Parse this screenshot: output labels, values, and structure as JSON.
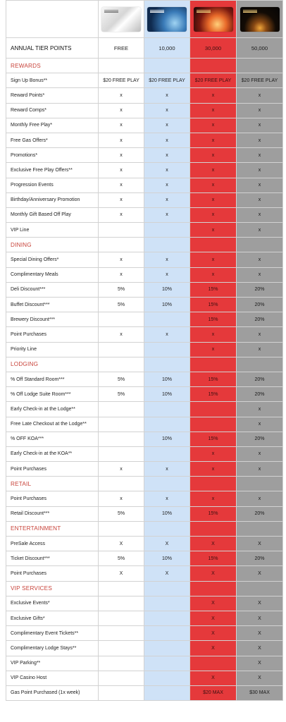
{
  "header": {
    "annual_label": "ANNUAL TIER POINTS",
    "tiers": [
      "FREE",
      "10,000",
      "30,000",
      "50,000"
    ],
    "cards": [
      {
        "name": "Free card",
        "wordmark": "STELLAR REWARDS"
      },
      {
        "name": "10,000 card",
        "wordmark": "STELLAR REWARDS"
      },
      {
        "name": "30,000 card",
        "wordmark": "STELLAR REWARDS"
      },
      {
        "name": "50,000 card",
        "wordmark": "STELLAR REWARDS"
      }
    ]
  },
  "colors": {
    "tier_10000": "#cfe2f7",
    "tier_30000": "#e5393b",
    "tier_50000": "#9e9e9e",
    "section_heading": "#c8433a"
  },
  "sections": [
    {
      "title": "REWARDS",
      "rows": [
        {
          "label": "Sign Up Bonus**",
          "values": [
            "$20 FREE PLAY",
            "$20 FREE PLAY",
            "$20 FREE PLAY",
            "$20 FREE PLAY"
          ]
        },
        {
          "label": "Reward Points*",
          "values": [
            "x",
            "x",
            "x",
            "x"
          ]
        },
        {
          "label": "Reward Comps*",
          "values": [
            "x",
            "x",
            "x",
            "x"
          ]
        },
        {
          "label": "Monthly Free Play*",
          "values": [
            "x",
            "x",
            "x",
            "x"
          ]
        },
        {
          "label": "Free Gas Offers*",
          "values": [
            "x",
            "x",
            "x",
            "x"
          ]
        },
        {
          "label": "Promotions*",
          "values": [
            "x",
            "x",
            "x",
            "x"
          ]
        },
        {
          "label": "Exclusive Free Play Offers**",
          "values": [
            "x",
            "x",
            "x",
            "x"
          ]
        },
        {
          "label": "Progression Events",
          "values": [
            "x",
            "x",
            "x",
            "x"
          ]
        },
        {
          "label": "Birthday/Anniversary Promotion",
          "values": [
            "x",
            "x",
            "x",
            "x"
          ]
        },
        {
          "label": "Monthly Gift Based Off Play",
          "values": [
            "x",
            "x",
            "x",
            "x"
          ]
        },
        {
          "label": "VIP Line",
          "values": [
            "",
            "",
            "x",
            "x"
          ]
        }
      ]
    },
    {
      "title": "DINING",
      "rows": [
        {
          "label": "Special Dining Offers*",
          "values": [
            "x",
            "x",
            "x",
            "x"
          ]
        },
        {
          "label": "Complimentary Meals",
          "values": [
            "x",
            "x",
            "x",
            "x"
          ]
        },
        {
          "label": "Deli Discount***",
          "values": [
            "5%",
            "10%",
            "15%",
            "20%"
          ]
        },
        {
          "label": "Buffet Discount***",
          "values": [
            "5%",
            "10%",
            "15%",
            "20%"
          ]
        },
        {
          "label": "Brewery Discount***",
          "values": [
            "",
            "",
            "15%",
            "20%"
          ]
        },
        {
          "label": "Point Purchases",
          "values": [
            "x",
            "x",
            "x",
            "x"
          ]
        },
        {
          "label": "Priority Line",
          "values": [
            "",
            "",
            "x",
            "x"
          ]
        }
      ]
    },
    {
      "title": "LODGING",
      "rows": [
        {
          "label": "% Off Standard Room***",
          "values": [
            "5%",
            "10%",
            "15%",
            "20%"
          ]
        },
        {
          "label": "% Off Lodge Suite Room***",
          "values": [
            "5%",
            "10%",
            "15%",
            "20%"
          ]
        },
        {
          "label": "Early Check-in at the Lodge**",
          "values": [
            "",
            "",
            "",
            "x"
          ]
        },
        {
          "label": "Free Late Checkout at the Lodge**",
          "values": [
            "",
            "",
            "",
            "x"
          ]
        },
        {
          "label": "% OFF KOA***",
          "values": [
            "",
            "10%",
            "15%",
            "20%"
          ]
        },
        {
          "label": "Early Check-in at the KOA**",
          "values": [
            "",
            "",
            "x",
            "x"
          ]
        },
        {
          "label": "Point Purchases",
          "values": [
            "x",
            "x",
            "x",
            "x"
          ]
        }
      ]
    },
    {
      "title": "RETAIL",
      "rows": [
        {
          "label": "Point Purchases",
          "values": [
            "x",
            "x",
            "x",
            "x"
          ]
        },
        {
          "label": "Retail Discount***",
          "values": [
            "5%",
            "10%",
            "15%",
            "20%"
          ]
        }
      ]
    },
    {
      "title": "ENTERTAINMENT",
      "rows": [
        {
          "label": "PreSale Access",
          "values": [
            "X",
            "X",
            "X",
            "X"
          ]
        },
        {
          "label": "Ticket Discount***",
          "values": [
            "5%",
            "10%",
            "15%",
            "20%"
          ]
        },
        {
          "label": "Point Purchases",
          "values": [
            "X",
            "X",
            "X",
            "X"
          ]
        }
      ]
    },
    {
      "title": "VIP SERVICES",
      "rows": [
        {
          "label": "Exclusive Events*",
          "values": [
            "",
            "",
            "X",
            "X"
          ]
        },
        {
          "label": "Exclusive Gifts*",
          "values": [
            "",
            "",
            "X",
            "X"
          ]
        },
        {
          "label": "Complimentary Event Tickets**",
          "values": [
            "",
            "",
            "X",
            "X"
          ]
        },
        {
          "label": "Complimentary Lodge Stays**",
          "values": [
            "",
            "",
            "X",
            "X"
          ]
        },
        {
          "label": "VIP Parking**",
          "values": [
            "",
            "",
            "",
            "X"
          ]
        },
        {
          "label": "VIP Casino Host",
          "values": [
            "",
            "",
            "X",
            "X"
          ]
        },
        {
          "label": "Gas Point Purchased (1x week)",
          "values": [
            "",
            "",
            "$20 MAX",
            "$30 MAX"
          ]
        }
      ]
    }
  ]
}
